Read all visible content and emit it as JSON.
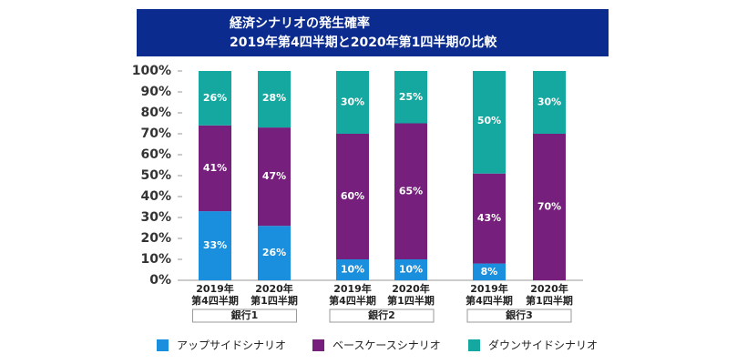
{
  "chart_data": {
    "type": "stacked_bar",
    "title": "経済シナリオの発生確率",
    "subtitle": "2019年第4四半期と2020年第1四半期の比較",
    "categories": [
      [
        "2019年",
        "第4四半期"
      ],
      [
        "2020年",
        "第1四半期"
      ],
      [
        "2019年",
        "第4四半期"
      ],
      [
        "2020年",
        "第1四半期"
      ],
      [
        "2019年",
        "第4四半期"
      ],
      [
        "2020年",
        "第1四半期"
      ]
    ],
    "groups": [
      "銀行1",
      "銀行2",
      "銀行3"
    ],
    "series": [
      {
        "name": "アップサイドシナリオ",
        "color": "#1a8fdd",
        "values": [
          33,
          26,
          10,
          10,
          8,
          null
        ],
        "value_labels": [
          "33%",
          "26%",
          "10%",
          "10%",
          "8%",
          null
        ]
      },
      {
        "name": "ベースケースシナリオ",
        "color": "#761f7c",
        "values": [
          41,
          47,
          60,
          65,
          43,
          70
        ],
        "value_labels": [
          "41%",
          "47%",
          "60%",
          "65%",
          "43%",
          "70%"
        ]
      },
      {
        "name": "ダウンサイドシナリオ",
        "color": "#14a8a0",
        "values": [
          26,
          28,
          30,
          25,
          50,
          30
        ],
        "value_labels": [
          "26%",
          "28%",
          "30%",
          "25%",
          "50%",
          "30%"
        ]
      }
    ],
    "ylim": [
      0,
      100
    ],
    "yticks": [
      {
        "value": 0,
        "label": "0%"
      },
      {
        "value": 10,
        "label": "10%"
      },
      {
        "value": 20,
        "label": "20%"
      },
      {
        "value": 30,
        "label": "30%"
      },
      {
        "value": 40,
        "label": "40%"
      },
      {
        "value": 50,
        "label": "50%"
      },
      {
        "value": 60,
        "label": "60%"
      },
      {
        "value": 70,
        "label": "70%"
      },
      {
        "value": 80,
        "label": "80%"
      },
      {
        "value": 90,
        "label": "90%"
      },
      {
        "value": 100,
        "label": "100%"
      }
    ],
    "grid": false
  }
}
